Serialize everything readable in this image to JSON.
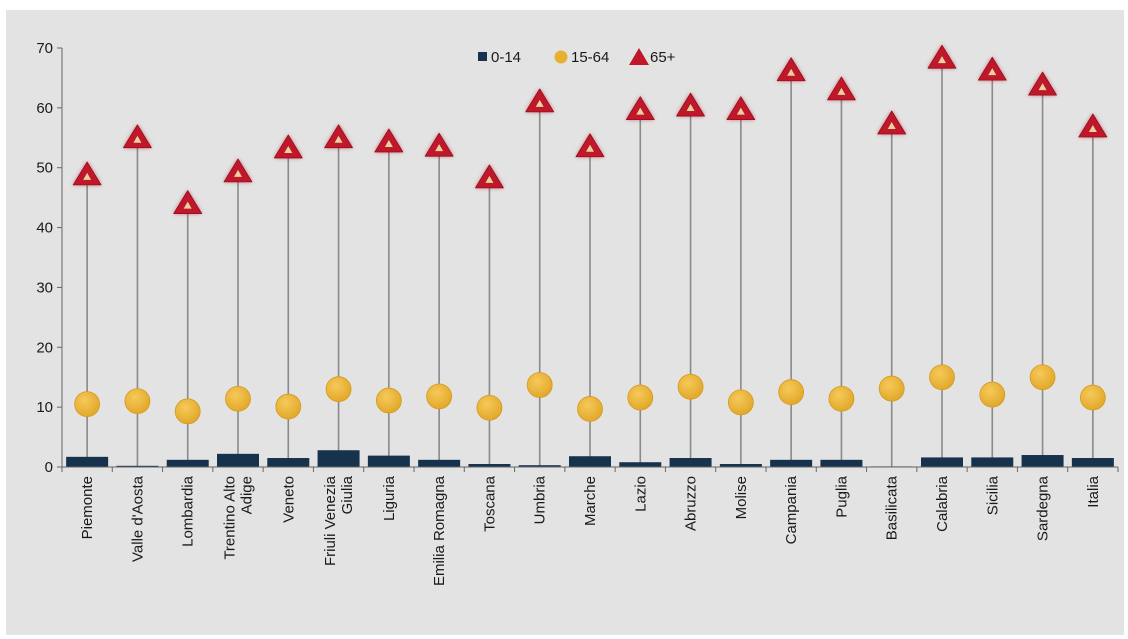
{
  "chart_data": {
    "type": "scatter",
    "title": "",
    "xlabel": "",
    "ylabel": "",
    "ylim": [
      0,
      70
    ],
    "yticks": [
      0,
      10,
      20,
      30,
      40,
      50,
      60,
      70
    ],
    "grid": false,
    "legend_position": "top-center",
    "categories": [
      "Piemonte",
      "Valle d'Aosta",
      "Lombardia",
      "Trentino Alto Adige",
      "Veneto",
      "Friuli Venezia Giulia",
      "Liguria",
      "Emilia Romagna",
      "Toscana",
      "Umbria",
      "Marche",
      "Lazio",
      "Abruzzo",
      "Molise",
      "Campania",
      "Puglia",
      "Basilicata",
      "Calabria",
      "Sicilia",
      "Sardegna",
      "Italia"
    ],
    "category_label_lines": [
      [
        "Piemonte"
      ],
      [
        "Valle d'Aosta"
      ],
      [
        "Lombardia"
      ],
      [
        "Trentino Alto",
        "Adige"
      ],
      [
        "Veneto"
      ],
      [
        "Friuli Venezia",
        "Giulia"
      ],
      [
        "Liguria"
      ],
      [
        "Emilia Romagna"
      ],
      [
        "Toscana"
      ],
      [
        "Umbria"
      ],
      [
        "Marche"
      ],
      [
        "Lazio"
      ],
      [
        "Abruzzo"
      ],
      [
        "Molise"
      ],
      [
        "Campania"
      ],
      [
        "Puglia"
      ],
      [
        "Basilicata"
      ],
      [
        "Calabria"
      ],
      [
        "Sicilia"
      ],
      [
        "Sardegna"
      ],
      [
        "Italia"
      ]
    ],
    "series": [
      {
        "name": "0-14",
        "marker": "bar",
        "color": "#17324d",
        "values": [
          1.7,
          0.2,
          1.2,
          2.2,
          1.5,
          2.8,
          1.9,
          1.2,
          0.5,
          0.3,
          1.8,
          0.8,
          1.5,
          0.5,
          1.2,
          1.2,
          0.1,
          1.6,
          1.6,
          2.0,
          1.5
        ]
      },
      {
        "name": "15-64",
        "marker": "circle",
        "color": "#e8b030",
        "values": [
          10.5,
          11.0,
          9.3,
          11.4,
          10.1,
          13.0,
          11.1,
          11.8,
          9.9,
          13.7,
          9.7,
          11.6,
          13.4,
          10.8,
          12.5,
          11.4,
          13.1,
          15.0,
          12.1,
          15.0,
          11.6
        ]
      },
      {
        "name": "65+",
        "marker": "triangle",
        "color": "#c0182a",
        "values": [
          48.8,
          55.0,
          44.0,
          49.3,
          53.3,
          55.0,
          54.3,
          53.6,
          48.3,
          61.0,
          53.5,
          59.7,
          60.3,
          59.7,
          66.2,
          63.0,
          57.3,
          68.3,
          66.3,
          63.8,
          56.8
        ]
      }
    ]
  }
}
